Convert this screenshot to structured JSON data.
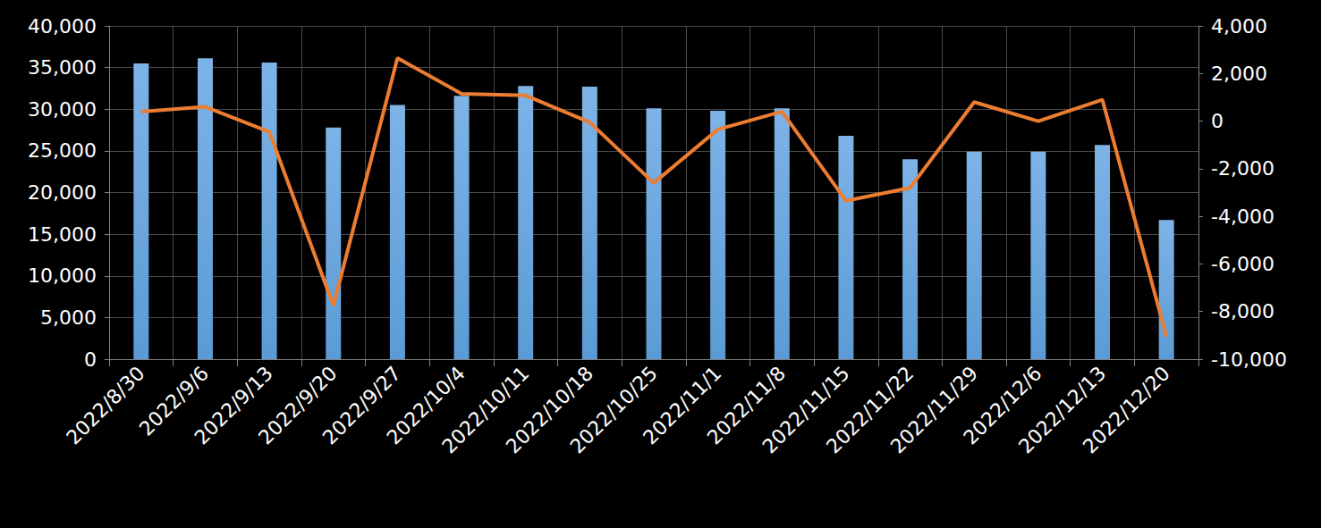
{
  "chart_data": {
    "type": "bar",
    "categories": [
      "2022/8/30",
      "2022/9/6",
      "2022/9/13",
      "2022/9/20",
      "2022/9/27",
      "2022/10/4",
      "2022/10/11",
      "2022/10/18",
      "2022/10/25",
      "2022/11/1",
      "2022/11/8",
      "2022/11/15",
      "2022/11/22",
      "2022/11/29",
      "2022/12/6",
      "2022/12/13",
      "2022/12/20"
    ],
    "series": [
      {
        "type": "bar",
        "color": "#5b9bd5",
        "axis": "y",
        "values": [
          35500,
          36100,
          35600,
          27800,
          30500,
          31600,
          32800,
          32700,
          30100,
          29800,
          30100,
          26800,
          24000,
          24900,
          24900,
          25700,
          16700
        ]
      },
      {
        "type": "line",
        "color": "#ed7d31",
        "axis": "y2",
        "values": [
          400,
          600,
          -450,
          -7750,
          2650,
          1150,
          1080,
          -50,
          -2600,
          -350,
          400,
          -3350,
          -2800,
          800,
          0,
          900,
          -9050
        ]
      }
    ],
    "ylim": [
      0,
      40000
    ],
    "yticks": [
      0,
      5000,
      10000,
      15000,
      20000,
      25000,
      30000,
      35000,
      40000
    ],
    "y2lim": [
      -10000,
      4000
    ],
    "y2ticks": [
      -10000,
      -8000,
      -6000,
      -4000,
      -2000,
      0,
      2000,
      4000
    ],
    "grid": true
  }
}
